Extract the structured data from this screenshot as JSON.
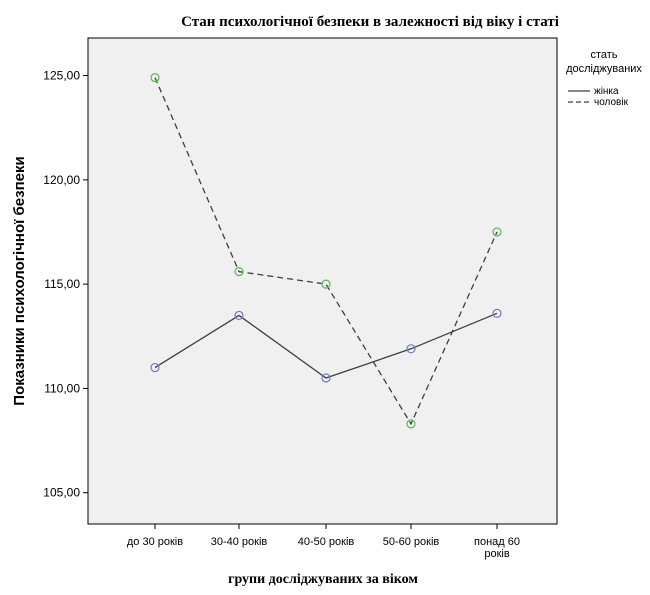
{
  "chart_data": {
    "type": "line",
    "title": "Стан психологічної безпеки в залежності від віку і статі",
    "xlabel": "групи досліджуваних за віком",
    "ylabel": "Показники психологічної безпеки",
    "categories": [
      [
        "до 30 років"
      ],
      [
        "30-40 років"
      ],
      [
        "40-50 років"
      ],
      [
        "50-60 років"
      ],
      [
        "понад 60",
        "років"
      ]
    ],
    "ylim": [
      103.5,
      126.8
    ],
    "yticks": [
      105,
      110,
      115,
      120,
      125
    ],
    "ytick_labels": [
      "105,00",
      "110,00",
      "115,00",
      "120,00",
      "125,00"
    ],
    "legend": {
      "title_lines": [
        "стать",
        "досліджуваних"
      ],
      "placement": "right"
    },
    "series": [
      {
        "name": "жінка",
        "values": [
          111.0,
          113.5,
          110.5,
          111.9,
          113.6
        ],
        "line_style": "solid",
        "line_color": "#3f3f3f",
        "marker_color": "#6b78c8"
      },
      {
        "name": "чоловік",
        "values": [
          124.9,
          115.6,
          115.0,
          108.3,
          117.5
        ],
        "line_style": "dashed",
        "line_color": "#3f3f3f",
        "marker_color": "#55b855"
      }
    ],
    "grid": false,
    "plot_background": "#f0f0f0"
  }
}
